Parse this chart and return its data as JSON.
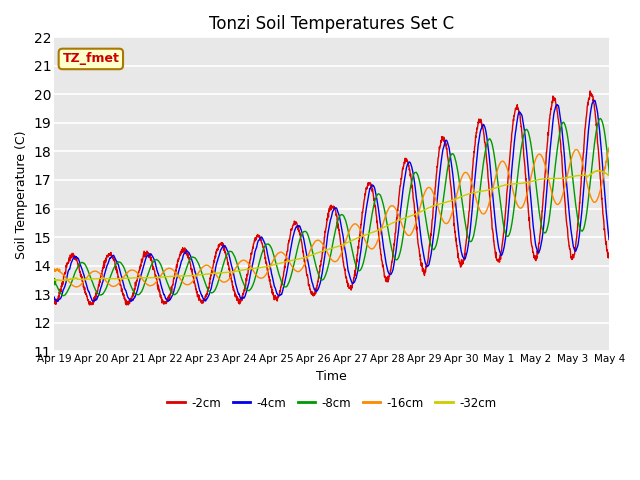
{
  "title": "Tonzi Soil Temperatures Set C",
  "xlabel": "Time",
  "ylabel": "Soil Temperature (C)",
  "ylim": [
    11.0,
    22.0
  ],
  "yticks": [
    11.0,
    12.0,
    13.0,
    14.0,
    15.0,
    16.0,
    17.0,
    18.0,
    19.0,
    20.0,
    21.0,
    22.0
  ],
  "xtick_labels": [
    "Apr 19",
    "Apr 20",
    "Apr 21",
    "Apr 22",
    "Apr 23",
    "Apr 24",
    "Apr 25",
    "Apr 26",
    "Apr 27",
    "Apr 28",
    "Apr 29",
    "Apr 30",
    "May 1",
    "May 2",
    "May 3",
    "May 4"
  ],
  "series_colors": [
    "#dd0000",
    "#0000ee",
    "#009900",
    "#ff8800",
    "#cccc00"
  ],
  "series_labels": [
    "-2cm",
    "-4cm",
    "-8cm",
    "-16cm",
    "-32cm"
  ],
  "legend_label": "TZ_fmet",
  "plot_bg_color": "#e8e8e8",
  "n_days": 15,
  "pts_per_day": 144
}
